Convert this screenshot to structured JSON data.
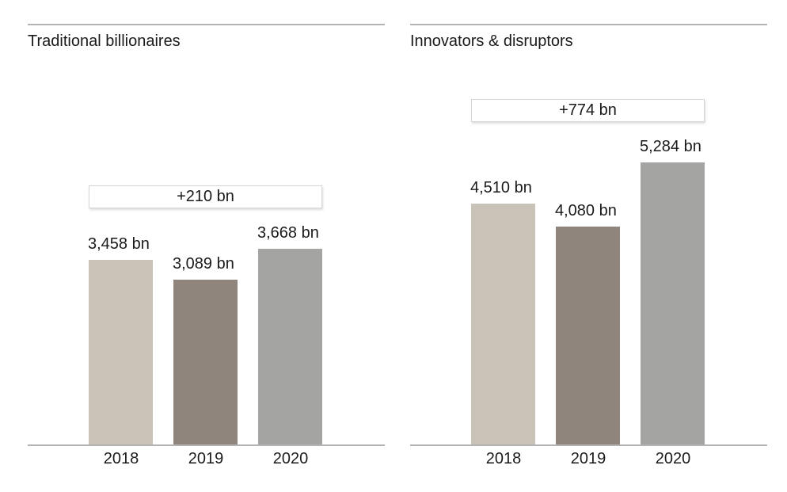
{
  "colors": {
    "text": "#1a1a1a",
    "rule_line": "#b3b3b3",
    "annotation_border": "#d6d6d6",
    "annotation_background": "#ffffff",
    "bar_2018": "#c9c2b6",
    "bar_2019": "#90857d",
    "bar_2020": "#a4a4a2",
    "background": "#ffffff"
  },
  "chart_data": [
    {
      "type": "bar",
      "title": "Traditional billionaires",
      "categories": [
        "2018",
        "2019",
        "2020"
      ],
      "values": [
        3458,
        3089,
        3668
      ],
      "value_labels": [
        "3,458 bn",
        "3,089 bn",
        "3,668 bn"
      ],
      "annotation_label": "+210 bn",
      "unit": "bn",
      "ylim": [
        0,
        5600
      ],
      "grid": false,
      "legend": "none",
      "bar_colors": [
        "#c9c2b6",
        "#90857d",
        "#a4a4a2"
      ]
    },
    {
      "type": "bar",
      "title": "Innovators & disruptors",
      "categories": [
        "2018",
        "2019",
        "2020"
      ],
      "values": [
        4510,
        4080,
        5284
      ],
      "value_labels": [
        "4,510 bn",
        "4,080 bn",
        "5,284 bn"
      ],
      "annotation_label": "+774 bn",
      "unit": "bn",
      "ylim": [
        0,
        5600
      ],
      "grid": false,
      "legend": "none",
      "bar_colors": [
        "#c9c2b6",
        "#90857d",
        "#a4a4a2"
      ]
    }
  ]
}
